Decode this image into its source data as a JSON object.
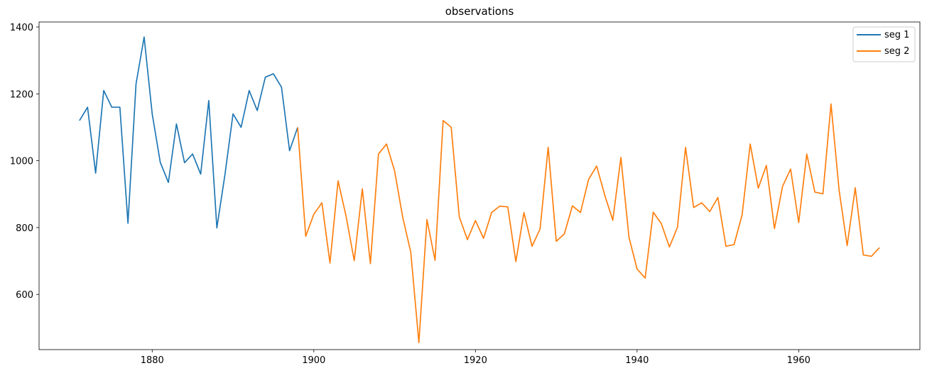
{
  "chart_data": {
    "type": "line",
    "title": "observations",
    "xlabel": "",
    "ylabel": "",
    "xlim": [
      1866,
      1975
    ],
    "ylim": [
      435,
      1415
    ],
    "xticks": [
      1880,
      1900,
      1920,
      1940,
      1960
    ],
    "yticks": [
      600,
      800,
      1000,
      1200,
      1400
    ],
    "grid": false,
    "legend_position": "top-right",
    "series": [
      {
        "name": "seg 1",
        "color": "#1f77b4",
        "x": [
          1871,
          1872,
          1873,
          1874,
          1875,
          1876,
          1877,
          1878,
          1879,
          1880,
          1881,
          1882,
          1883,
          1884,
          1885,
          1886,
          1887,
          1888,
          1889,
          1890,
          1891,
          1892,
          1893,
          1894,
          1895,
          1896,
          1897,
          1898
        ],
        "values": [
          1120,
          1160,
          963,
          1210,
          1160,
          1160,
          813,
          1230,
          1370,
          1140,
          995,
          935,
          1110,
          994,
          1020,
          960,
          1180,
          799,
          958,
          1140,
          1100,
          1210,
          1150,
          1250,
          1260,
          1220,
          1030,
          1100
        ]
      },
      {
        "name": "seg 2",
        "color": "#ff7f0e",
        "x": [
          1898,
          1899,
          1900,
          1901,
          1902,
          1903,
          1904,
          1905,
          1906,
          1907,
          1908,
          1909,
          1910,
          1911,
          1912,
          1913,
          1914,
          1915,
          1916,
          1917,
          1918,
          1919,
          1920,
          1921,
          1922,
          1923,
          1924,
          1925,
          1926,
          1927,
          1928,
          1929,
          1930,
          1931,
          1932,
          1933,
          1934,
          1935,
          1936,
          1937,
          1938,
          1939,
          1940,
          1941,
          1942,
          1943,
          1944,
          1945,
          1946,
          1947,
          1948,
          1949,
          1950,
          1951,
          1952,
          1953,
          1954,
          1955,
          1956,
          1957,
          1958,
          1959,
          1960,
          1961,
          1962,
          1963,
          1964,
          1965,
          1966,
          1967,
          1968,
          1969,
          1970
        ],
        "values": [
          1100,
          774,
          840,
          874,
          694,
          940,
          833,
          701,
          916,
          692,
          1020,
          1050,
          969,
          831,
          726,
          456,
          824,
          702,
          1120,
          1100,
          832,
          764,
          821,
          768,
          845,
          864,
          862,
          698,
          845,
          744,
          796,
          1040,
          759,
          781,
          865,
          845,
          944,
          984,
          897,
          822,
          1010,
          771,
          676,
          649,
          846,
          812,
          742,
          801,
          1040,
          860,
          874,
          848,
          890,
          744,
          749,
          838,
          1050,
          918,
          986,
          797,
          923,
          975,
          815,
          1020,
          906,
          901,
          1170,
          912,
          746,
          919,
          718,
          714,
          740
        ]
      }
    ]
  }
}
